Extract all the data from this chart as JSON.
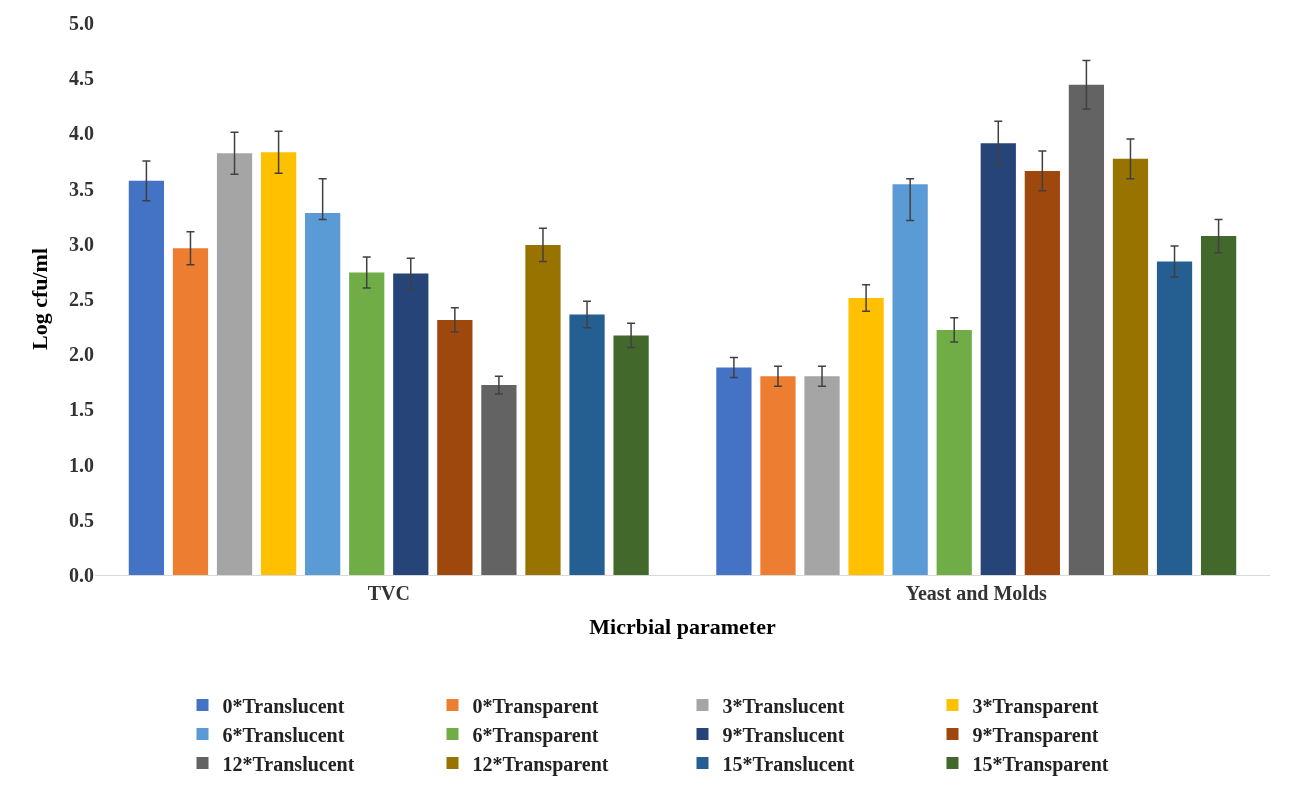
{
  "chart_data": {
    "type": "bar",
    "xlabel": "Micrbial parameter",
    "ylabel": "Log cfu/ml",
    "categories": [
      "TVC",
      "Yeast and Molds"
    ],
    "ylim": [
      0,
      5
    ],
    "yticks": [
      {
        "value": 0,
        "label": "0.0"
      },
      {
        "value": 0.5,
        "label": "0.5"
      },
      {
        "value": 1,
        "label": "1.0"
      },
      {
        "value": 1.5,
        "label": "1.5"
      },
      {
        "value": 2,
        "label": "2.0"
      },
      {
        "value": 2.5,
        "label": "2.5"
      },
      {
        "value": 3,
        "label": "3.0"
      },
      {
        "value": 3.5,
        "label": "3.5"
      },
      {
        "value": 4,
        "label": "4.0"
      },
      {
        "value": 4.5,
        "label": "4.5"
      },
      {
        "value": 5,
        "label": "5.0"
      }
    ],
    "grid": false,
    "legend": "bottom",
    "series": [
      {
        "name": "0*Translucent",
        "color": "#4472c4",
        "values": [
          3.57,
          1.88
        ],
        "errors": [
          0.18,
          0.09
        ]
      },
      {
        "name": "0*Transparent",
        "color": "#ed7d31",
        "values": [
          2.96,
          1.8
        ],
        "errors": [
          0.15,
          0.09
        ]
      },
      {
        "name": "3*Translucent",
        "color": "#a5a5a5",
        "values": [
          3.82,
          1.8
        ],
        "errors": [
          0.19,
          0.09
        ]
      },
      {
        "name": "3*Transparent",
        "color": "#ffc000",
        "values": [
          3.83,
          2.51
        ],
        "errors": [
          0.19,
          0.12
        ]
      },
      {
        "name": "6*Translucent",
        "color": "#5b9bd5",
        "values": [
          3.28,
          3.54
        ],
        "errors": [
          [
            3.22,
            3.59
          ],
          [
            3.21,
            3.59
          ]
        ]
      },
      {
        "name": "6*Transparent",
        "color": "#70ad47",
        "values": [
          2.74,
          2.22
        ],
        "errors": [
          0.14,
          0.11
        ]
      },
      {
        "name": "9*Translucent",
        "color": "#264478",
        "values": [
          2.73,
          3.91
        ],
        "errors": [
          0.14,
          0.2
        ]
      },
      {
        "name": "9*Transparent",
        "color": "#9e480e",
        "values": [
          2.31,
          3.66
        ],
        "errors": [
          0.11,
          0.18
        ]
      },
      {
        "name": "12*Translucent",
        "color": "#636363",
        "values": [
          1.72,
          4.44
        ],
        "errors": [
          0.08,
          0.22
        ]
      },
      {
        "name": "12*Transparent",
        "color": "#997300",
        "values": [
          2.99,
          3.77
        ],
        "errors": [
          0.15,
          0.18
        ]
      },
      {
        "name": "15*Translucent",
        "color": "#255e91",
        "values": [
          2.36,
          2.84
        ],
        "errors": [
          0.12,
          0.14
        ]
      },
      {
        "name": "15*Transparent",
        "color": "#43682b",
        "values": [
          2.17,
          3.07
        ],
        "errors": [
          0.11,
          0.15
        ]
      }
    ]
  }
}
